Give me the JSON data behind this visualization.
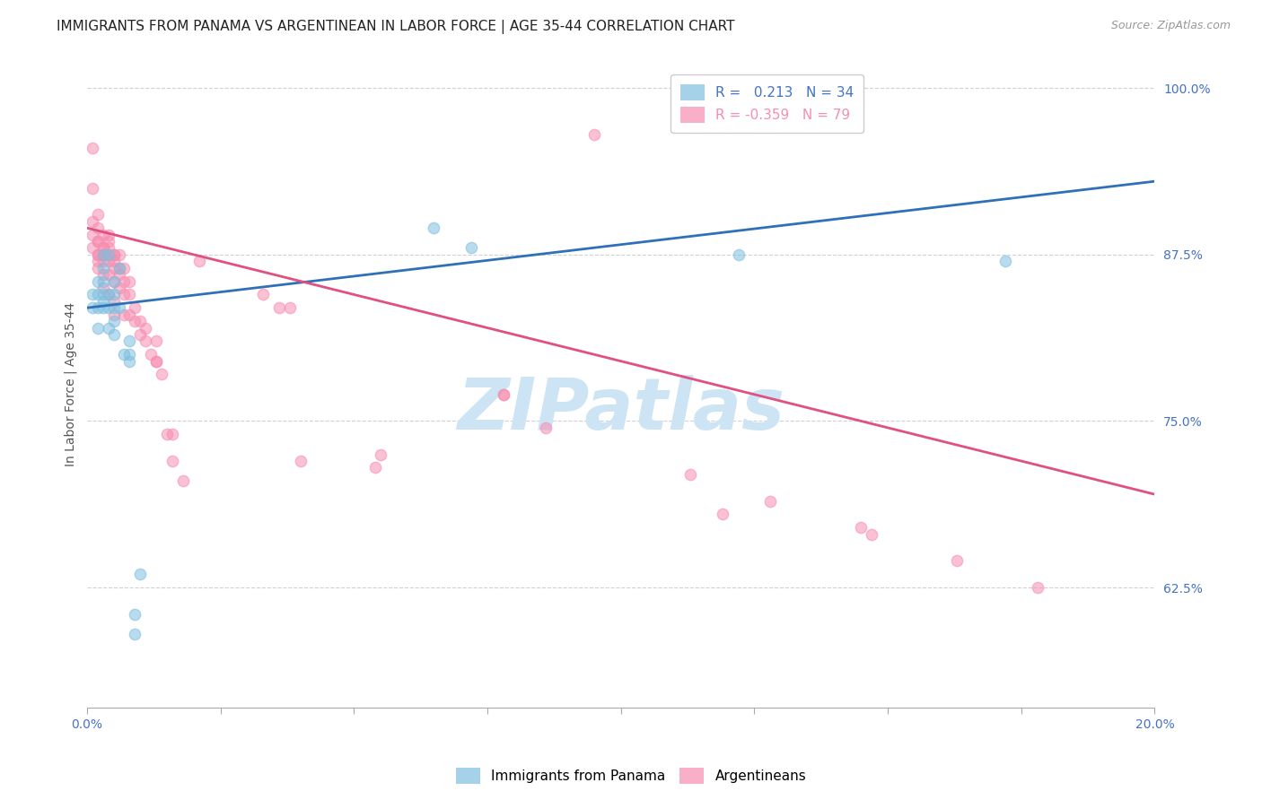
{
  "title": "IMMIGRANTS FROM PANAMA VS ARGENTINEAN IN LABOR FORCE | AGE 35-44 CORRELATION CHART",
  "source": "Source: ZipAtlas.com",
  "ylabel": "In Labor Force | Age 35-44",
  "xlim": [
    0.0,
    0.2
  ],
  "ylim": [
    0.535,
    1.02
  ],
  "yticks": [
    0.625,
    0.75,
    0.875,
    1.0
  ],
  "ytick_labels": [
    "62.5%",
    "75.0%",
    "87.5%",
    "100.0%"
  ],
  "xticks": [
    0.0,
    0.025,
    0.05,
    0.075,
    0.1,
    0.125,
    0.15,
    0.175,
    0.2
  ],
  "xtick_labels": [
    "0.0%",
    "",
    "",
    "",
    "",
    "",
    "",
    "",
    "20.0%"
  ],
  "blue_color": "#7fbfdf",
  "pink_color": "#f78db0",
  "trend_blue": "#3070b8",
  "trend_pink": "#e05080",
  "bg_color": "#ffffff",
  "grid_color": "#cccccc",
  "axis_color": "#4472c4",
  "R_blue": 0.213,
  "N_blue": 34,
  "R_pink": -0.359,
  "N_pink": 79,
  "blue_x": [
    0.001,
    0.001,
    0.002,
    0.002,
    0.002,
    0.002,
    0.003,
    0.003,
    0.003,
    0.003,
    0.003,
    0.003,
    0.004,
    0.004,
    0.004,
    0.004,
    0.005,
    0.005,
    0.005,
    0.005,
    0.005,
    0.006,
    0.006,
    0.007,
    0.008,
    0.008,
    0.008,
    0.009,
    0.009,
    0.01,
    0.065,
    0.072,
    0.122,
    0.172
  ],
  "blue_y": [
    0.835,
    0.845,
    0.82,
    0.835,
    0.845,
    0.855,
    0.835,
    0.84,
    0.845,
    0.855,
    0.865,
    0.875,
    0.82,
    0.835,
    0.845,
    0.875,
    0.815,
    0.825,
    0.835,
    0.845,
    0.855,
    0.835,
    0.865,
    0.8,
    0.795,
    0.8,
    0.81,
    0.605,
    0.59,
    0.635,
    0.895,
    0.88,
    0.875,
    0.87
  ],
  "pink_x": [
    0.001,
    0.001,
    0.001,
    0.001,
    0.001,
    0.002,
    0.002,
    0.002,
    0.002,
    0.002,
    0.002,
    0.002,
    0.002,
    0.003,
    0.003,
    0.003,
    0.003,
    0.003,
    0.003,
    0.003,
    0.003,
    0.004,
    0.004,
    0.004,
    0.004,
    0.004,
    0.004,
    0.004,
    0.005,
    0.005,
    0.005,
    0.005,
    0.005,
    0.005,
    0.005,
    0.006,
    0.006,
    0.006,
    0.006,
    0.007,
    0.007,
    0.007,
    0.007,
    0.008,
    0.008,
    0.008,
    0.009,
    0.009,
    0.01,
    0.01,
    0.011,
    0.011,
    0.012,
    0.013,
    0.013,
    0.013,
    0.014,
    0.015,
    0.016,
    0.016,
    0.018,
    0.021,
    0.033,
    0.036,
    0.038,
    0.04,
    0.054,
    0.055,
    0.078,
    0.078,
    0.086,
    0.095,
    0.113,
    0.119,
    0.128,
    0.145,
    0.147,
    0.163,
    0.178
  ],
  "pink_y": [
    0.88,
    0.89,
    0.9,
    0.925,
    0.955,
    0.865,
    0.875,
    0.885,
    0.895,
    0.87,
    0.875,
    0.885,
    0.905,
    0.85,
    0.86,
    0.87,
    0.875,
    0.875,
    0.88,
    0.89,
    0.88,
    0.845,
    0.86,
    0.87,
    0.875,
    0.88,
    0.885,
    0.89,
    0.83,
    0.84,
    0.855,
    0.865,
    0.87,
    0.875,
    0.875,
    0.85,
    0.86,
    0.865,
    0.875,
    0.83,
    0.845,
    0.855,
    0.865,
    0.83,
    0.845,
    0.855,
    0.825,
    0.835,
    0.815,
    0.825,
    0.81,
    0.82,
    0.8,
    0.795,
    0.795,
    0.81,
    0.785,
    0.74,
    0.72,
    0.74,
    0.705,
    0.87,
    0.845,
    0.835,
    0.835,
    0.72,
    0.715,
    0.725,
    0.77,
    0.77,
    0.745,
    0.965,
    0.71,
    0.68,
    0.69,
    0.67,
    0.665,
    0.645,
    0.625
  ],
  "watermark": "ZIPatlas",
  "watermark_color": "#cde4f5",
  "title_fontsize": 11,
  "label_fontsize": 10,
  "tick_fontsize": 10,
  "legend_fontsize": 11
}
